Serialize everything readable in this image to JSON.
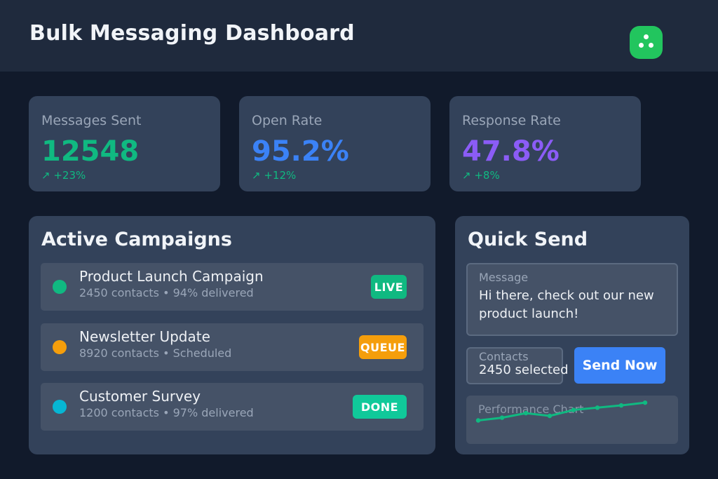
{
  "header": {
    "title": "Bulk Messaging Dashboard",
    "avatar_icon": "dots-icon",
    "avatar_color": "#22c55e"
  },
  "stats": [
    {
      "label": "Messages Sent",
      "value": "12548",
      "change": "↗ +23%",
      "color": "#10b981"
    },
    {
      "label": "Open Rate",
      "value": "95.2%",
      "change": "↗ +12%",
      "color": "#3b82f6"
    },
    {
      "label": "Response Rate",
      "value": "47.8%",
      "change": "↗ +8%",
      "color": "#8b5cf6"
    }
  ],
  "campaigns": {
    "title": "Active Campaigns",
    "items": [
      {
        "name": "Product Launch Campaign",
        "meta": "2450 contacts • 94% delivered",
        "status": "LIVE",
        "dot_color": "#10b981",
        "badge_color": "#10b981"
      },
      {
        "name": "Newsletter Update",
        "meta": "8920 contacts • Scheduled",
        "status": "QUEUE",
        "dot_color": "#f59e0b",
        "badge_color": "#f59e0b"
      },
      {
        "name": "Customer Survey",
        "meta": "1200 contacts • 97% delivered",
        "status": "DONE",
        "dot_color": "#06b6d4",
        "badge_color": "#10c99a"
      }
    ]
  },
  "quick_send": {
    "title": "Quick Send",
    "message_label": "Message",
    "message_value": "Hi there, check out our new product launch!",
    "contacts_label": "Contacts",
    "contacts_value": "2450 selected",
    "send_label": "Send Now",
    "chart_title": "Performance Chart"
  },
  "chart_data": {
    "type": "line",
    "title": "Performance Chart",
    "values": [
      10,
      16,
      26,
      20,
      33,
      38,
      43,
      49
    ],
    "ylim": [
      0,
      60
    ],
    "color": "#10b981",
    "grid": false
  }
}
